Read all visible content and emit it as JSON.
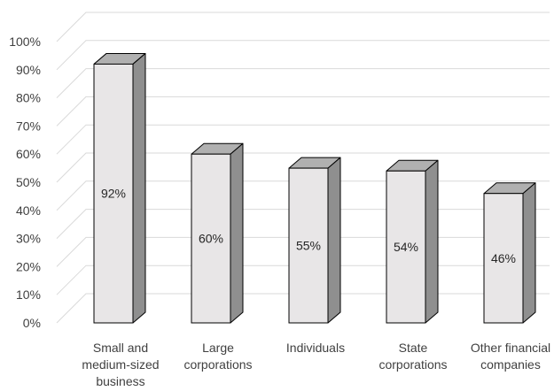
{
  "chart_data": {
    "type": "bar",
    "title": "",
    "xlabel": "",
    "ylabel": "",
    "ylim": [
      0,
      100
    ],
    "y_ticks": [
      "0%",
      "10%",
      "20%",
      "30%",
      "40%",
      "50%",
      "60%",
      "70%",
      "80%",
      "90%",
      "100%"
    ],
    "grid": true,
    "legend": "none",
    "style": "3d-column",
    "categories": [
      [
        "Small and",
        "medium-sized",
        "business"
      ],
      [
        "Large",
        "corporations"
      ],
      [
        "Individuals"
      ],
      [
        "State",
        "corporations"
      ],
      [
        "Other financial",
        "companies"
      ]
    ],
    "values": [
      92,
      60,
      55,
      54,
      46
    ],
    "data_labels": [
      "92%",
      "60%",
      "55%",
      "54%",
      "46%"
    ],
    "colors": {
      "bar_front": "#e8e6e7",
      "bar_side": "#8f8f8f",
      "bar_top": "#b0b0b0",
      "outline": "#000000",
      "grid": "#d9d9d9",
      "text": "#404040"
    }
  }
}
